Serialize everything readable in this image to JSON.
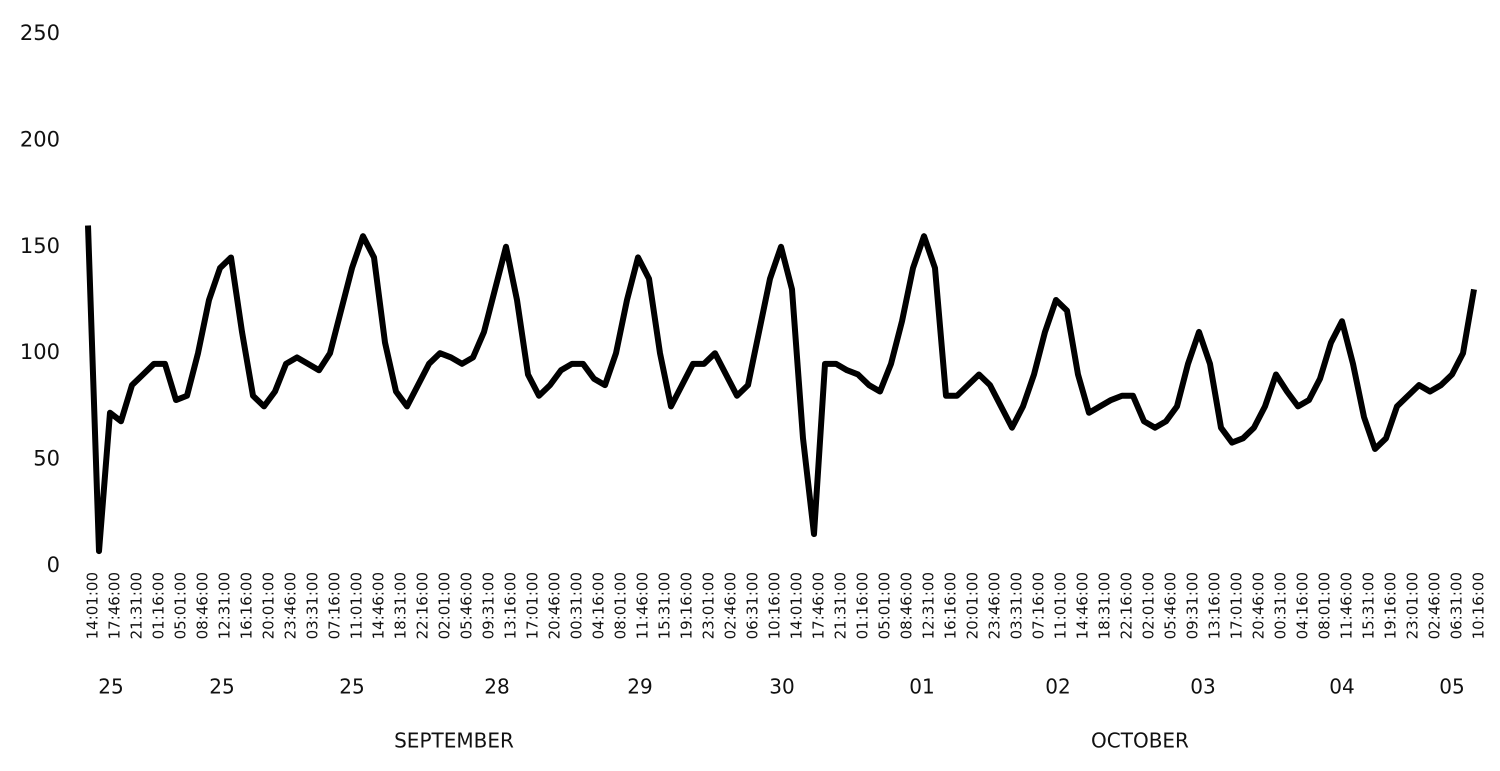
{
  "chart_data": {
    "type": "line",
    "categories": [
      "14:01:00",
      null,
      "17:46:00",
      null,
      "21:31:00",
      null,
      "01:16:00",
      null,
      "05:01:00",
      null,
      "08:46:00",
      null,
      "12:31:00",
      null,
      "16:16:00",
      null,
      "20:01:00",
      null,
      "23:46:00",
      null,
      "03:31:00",
      null,
      "07:16:00",
      null,
      "11:01:00",
      null,
      "14:46:00",
      null,
      "18:31:00",
      null,
      "22:16:00",
      null,
      "02:01:00",
      null,
      "05:46:00",
      null,
      "09:31:00",
      null,
      "13:16:00",
      null,
      "17:01:00",
      null,
      "20:46:00",
      null,
      "00:31:00",
      null,
      "04:16:00",
      null,
      "08:01:00",
      null,
      "11:46:00",
      null,
      "15:31:00",
      null,
      "19:16:00",
      null,
      "23:01:00",
      null,
      "02:46:00",
      null,
      "06:31:00",
      null,
      "10:16:00",
      null,
      "14:01:00",
      null,
      "17:46:00",
      null,
      "21:31:00",
      null,
      "01:16:00",
      null,
      "05:01:00",
      null,
      "08:46:00",
      null,
      "12:31:00",
      null,
      "16:16:00",
      null,
      "20:01:00",
      null,
      "23:46:00",
      null,
      "03:31:00",
      null,
      "07:16:00",
      null,
      "11:01:00",
      null,
      "14:46:00",
      null,
      "18:31:00",
      null,
      "22:16:00",
      null,
      "02:01:00",
      null,
      "05:46:00",
      null,
      "09:31:00",
      null,
      "13:16:00",
      null,
      "17:01:00",
      null,
      "20:46:00",
      null,
      "00:31:00",
      null,
      "04:16:00",
      null,
      "08:01:00",
      null,
      "11:46:00",
      null,
      "15:31:00",
      null,
      "19:16:00",
      null,
      "23:01:00",
      null,
      "02:46:00",
      null,
      "06:31:00",
      null,
      "10:16:00"
    ],
    "series": [
      {
        "color": "#000000",
        "values": [
          160,
          7,
          72,
          68,
          85,
          90,
          95,
          95,
          78,
          80,
          100,
          125,
          140,
          145,
          110,
          80,
          75,
          82,
          95,
          98,
          95,
          92,
          100,
          120,
          140,
          155,
          145,
          105,
          82,
          75,
          85,
          95,
          100,
          98,
          95,
          98,
          110,
          130,
          150,
          125,
          90,
          80,
          85,
          92,
          95,
          95,
          88,
          85,
          100,
          125,
          145,
          135,
          100,
          75,
          85,
          95,
          95,
          100,
          90,
          80,
          85,
          110,
          135,
          150,
          130,
          60,
          15,
          95,
          95,
          92,
          90,
          85,
          82,
          95,
          115,
          140,
          155,
          140,
          80,
          80,
          85,
          90,
          85,
          75,
          65,
          75,
          90,
          110,
          125,
          120,
          90,
          72,
          75,
          78,
          80,
          80,
          68,
          65,
          68,
          75,
          95,
          110,
          95,
          65,
          58,
          60,
          65,
          75,
          90,
          82,
          75,
          78,
          88,
          105,
          115,
          95,
          70,
          55,
          60,
          75,
          80,
          85,
          82,
          85,
          90,
          100,
          130
        ]
      }
    ],
    "ylim": [
      0,
      250
    ],
    "yticks": [
      0,
      50,
      100,
      150,
      200,
      250
    ],
    "grid": false,
    "day_labels": [
      "25",
      "25",
      "25",
      "28",
      "29",
      "30",
      "01",
      "02",
      "03",
      "04",
      "05"
    ],
    "month_labels": [
      "SEPTEMBER",
      "OCTOBER"
    ]
  }
}
